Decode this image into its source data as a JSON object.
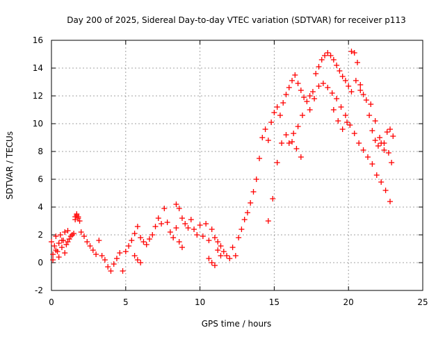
{
  "chart_data": {
    "type": "scatter",
    "title": "Day 200 of 2025, Sidereal Day-to-day VTEC variation (SDTVAR) for receiver p113",
    "xlabel": "GPS time / hours",
    "ylabel": "SDTVAR / TECUs",
    "xlim": [
      0,
      25
    ],
    "ylim": [
      -2,
      16
    ],
    "xticks": [
      0,
      5,
      10,
      15,
      20,
      25
    ],
    "yticks": [
      -2,
      0,
      2,
      4,
      6,
      8,
      10,
      12,
      14,
      16
    ],
    "grid": true,
    "marker": "+",
    "marker_color": "#ff0000",
    "series": [
      {
        "name": "SDTVAR",
        "x": [
          0.0,
          0.1,
          0.2,
          0.3,
          0.4,
          0.5,
          0.6,
          0.7,
          0.8,
          0.9,
          1.0,
          1.1,
          1.2,
          1.3,
          1.4,
          1.5,
          1.6,
          1.7,
          1.8,
          1.9,
          2.0,
          2.2,
          2.4,
          2.6,
          2.8,
          3.0,
          3.2,
          3.4,
          3.6,
          3.8,
          4.0,
          4.2,
          4.4,
          4.6,
          4.8,
          5.0,
          5.2,
          5.4,
          5.6,
          5.8,
          6.0,
          6.2,
          6.4,
          6.6,
          6.8,
          7.0,
          7.2,
          7.4,
          7.6,
          7.8,
          8.0,
          8.2,
          8.4,
          8.6,
          8.8,
          9.0,
          9.2,
          9.4,
          9.6,
          9.8,
          10.0,
          10.2,
          10.4,
          10.6,
          10.8,
          11.0,
          11.2,
          11.4,
          11.6,
          11.8,
          12.0,
          12.2,
          12.4,
          12.6,
          12.8,
          13.0,
          13.2,
          13.4,
          13.6,
          13.8,
          14.0,
          14.2,
          14.4,
          14.6,
          14.8,
          15.0,
          15.2,
          15.4,
          15.6,
          15.8,
          16.0,
          16.2,
          16.4,
          16.6,
          16.8,
          17.0,
          17.2,
          17.4,
          17.6,
          17.8,
          18.0,
          18.2,
          18.4,
          18.6,
          18.8,
          19.0,
          19.2,
          19.4,
          19.6,
          19.8,
          20.0,
          20.2,
          20.4,
          20.6,
          20.8,
          21.0,
          21.2,
          21.4,
          21.6,
          21.8,
          22.0,
          22.2,
          22.4,
          22.6,
          22.8,
          23.0,
          0.1,
          0.3,
          0.5,
          0.7,
          0.9,
          1.1,
          1.6,
          1.7,
          1.8,
          5.6,
          5.8,
          6.0,
          8.4,
          8.6,
          8.8,
          10.6,
          10.8,
          11.0,
          11.2,
          11.4,
          14.6,
          14.9,
          15.2,
          15.5,
          15.8,
          16.0,
          16.3,
          16.6,
          16.9,
          17.4,
          17.7,
          18.0,
          18.3,
          18.6,
          18.9,
          19.2,
          19.5,
          19.8,
          20.1,
          20.4,
          20.7,
          21.0,
          21.3,
          21.6,
          21.9,
          22.2,
          22.5,
          22.8,
          16.2,
          16.5,
          16.8,
          19.0,
          19.3,
          19.6,
          19.9,
          20.2,
          20.5,
          20.8,
          21.5,
          21.8,
          22.1,
          22.4,
          22.7,
          22.9
        ],
        "y": [
          1.5,
          0.6,
          1.2,
          1.9,
          0.8,
          1.4,
          2.0,
          1.1,
          1.6,
          2.2,
          1.3,
          1.5,
          1.7,
          1.9,
          2.0,
          2.1,
          3.3,
          3.4,
          3.2,
          3.0,
          2.2,
          1.9,
          1.5,
          1.2,
          0.9,
          0.6,
          1.6,
          0.5,
          0.2,
          -0.3,
          -0.6,
          -0.1,
          0.3,
          0.7,
          -0.6,
          0.8,
          1.2,
          1.6,
          2.1,
          2.6,
          1.8,
          1.5,
          1.3,
          1.7,
          2.0,
          2.6,
          3.2,
          2.8,
          3.9,
          2.9,
          2.2,
          1.8,
          4.2,
          3.9,
          3.2,
          2.8,
          2.5,
          3.1,
          2.4,
          2.0,
          2.7,
          1.9,
          2.8,
          1.6,
          2.4,
          1.8,
          1.5,
          1.2,
          0.8,
          0.5,
          0.3,
          1.1,
          0.5,
          1.8,
          2.4,
          3.1,
          3.6,
          4.3,
          5.1,
          6.0,
          7.5,
          9.0,
          9.6,
          8.8,
          10.1,
          10.8,
          11.2,
          10.6,
          11.5,
          12.1,
          12.6,
          13.1,
          13.5,
          12.9,
          12.4,
          11.9,
          11.6,
          12.0,
          12.3,
          13.6,
          14.1,
          14.6,
          14.9,
          15.1,
          14.9,
          14.6,
          14.2,
          13.8,
          13.4,
          13.1,
          12.7,
          15.2,
          15.1,
          14.4,
          12.8,
          12.1,
          11.7,
          10.6,
          9.5,
          8.8,
          8.4,
          8.6,
          8.1,
          9.4,
          9.6,
          9.1,
          0.2,
          0.9,
          0.4,
          1.6,
          0.7,
          2.3,
          3.1,
          3.5,
          3.3,
          0.5,
          0.2,
          0.0,
          2.5,
          1.5,
          1.1,
          0.3,
          0.0,
          -0.2,
          0.9,
          0.5,
          3.0,
          4.6,
          7.2,
          8.6,
          9.2,
          8.6,
          9.3,
          9.8,
          10.6,
          11.0,
          11.8,
          12.7,
          12.9,
          12.6,
          12.2,
          11.8,
          11.2,
          10.6,
          9.9,
          9.3,
          8.6,
          8.1,
          7.6,
          7.1,
          6.3,
          5.8,
          5.2,
          4.4,
          8.7,
          8.2,
          7.6,
          11.0,
          10.2,
          9.6,
          10.1,
          12.3,
          13.1,
          12.4,
          11.4,
          10.2,
          9.0,
          8.6,
          7.9,
          7.2
        ]
      }
    ]
  }
}
